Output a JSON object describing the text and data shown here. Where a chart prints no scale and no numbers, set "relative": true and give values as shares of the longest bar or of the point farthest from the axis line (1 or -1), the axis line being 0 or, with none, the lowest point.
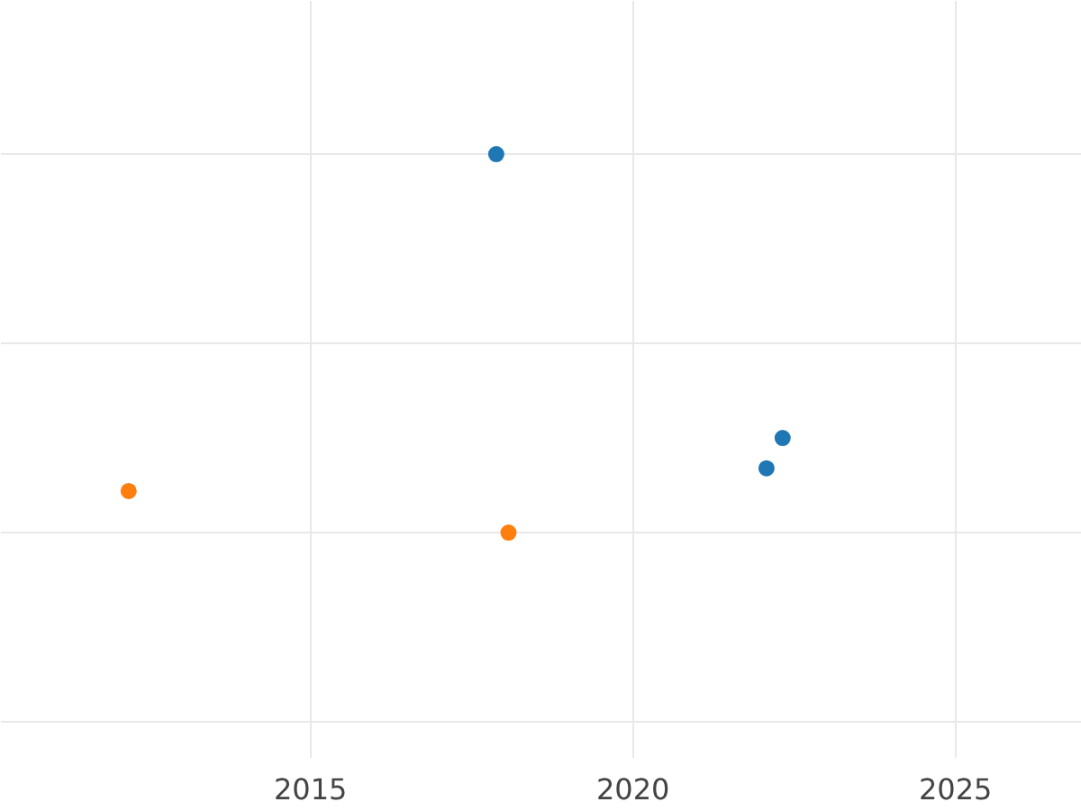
{
  "chart_data": {
    "type": "scatter",
    "relative": true,
    "xlim": [
      2010.2,
      2026.96
    ],
    "xticks": [
      2015,
      2020,
      2025
    ],
    "grid": true,
    "marker": "circle",
    "tick_labels": "x",
    "series": [
      {
        "color": "#1f77b4",
        "x": [
          2017.88,
          2022.32,
          2022.07
        ],
        "values": [
          1,
          0.25,
          0.17
        ]
      },
      {
        "color": "#ff7f0e",
        "x": [
          2012.18,
          2018.07
        ],
        "values": [
          0.11,
          0
        ]
      }
    ]
  }
}
